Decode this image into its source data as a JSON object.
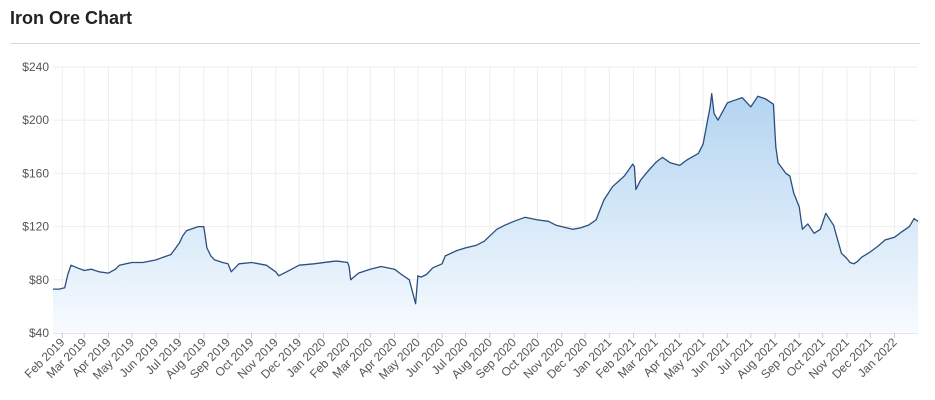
{
  "header": {
    "title": "Iron Ore Chart"
  },
  "chart_data": {
    "type": "area",
    "title": "Iron Ore Chart",
    "xlabel": "",
    "ylabel": "",
    "ylim": [
      40,
      240
    ],
    "y_ticks": [
      40,
      80,
      120,
      160,
      200,
      240
    ],
    "y_tick_labels": [
      "$40",
      "$80",
      "$120",
      "$160",
      "$200",
      "$240"
    ],
    "x_range": [
      "2019-01-20",
      "2022-01-31"
    ],
    "x_tick_dates": [
      "2019-02-01",
      "2019-03-01",
      "2019-04-01",
      "2019-05-01",
      "2019-06-01",
      "2019-07-01",
      "2019-08-01",
      "2019-09-01",
      "2019-10-01",
      "2019-11-01",
      "2019-12-01",
      "2020-01-01",
      "2020-02-01",
      "2020-03-01",
      "2020-04-01",
      "2020-05-01",
      "2020-06-01",
      "2020-07-01",
      "2020-08-01",
      "2020-09-01",
      "2020-10-01",
      "2020-11-01",
      "2020-12-01",
      "2021-01-01",
      "2021-02-01",
      "2021-03-01",
      "2021-04-01",
      "2021-05-01",
      "2021-06-01",
      "2021-07-01",
      "2021-08-01",
      "2021-09-01",
      "2021-10-01",
      "2021-11-01",
      "2021-12-01",
      "2022-01-01"
    ],
    "x_tick_labels": [
      "Feb 2019",
      "Mar 2019",
      "Apr 2019",
      "May 2019",
      "Jun 2019",
      "Jul 2019",
      "Aug 2019",
      "Sep 2019",
      "Oct 2019",
      "Nov 2019",
      "Dec 2019",
      "Jan 2020",
      "Feb 2020",
      "Mar 2020",
      "Apr 2020",
      "May 2020",
      "Jun 2020",
      "Jul 2020",
      "Aug 2020",
      "Sep 2020",
      "Oct 2020",
      "Nov 2020",
      "Dec 2020",
      "Jan 2021",
      "Feb 2021",
      "Mar 2021",
      "Apr 2021",
      "May 2021",
      "Jun 2021",
      "Jul 2021",
      "Aug 2021",
      "Sep 2021",
      "Oct 2021",
      "Nov 2021",
      "Dec 2021",
      "Jan 2022"
    ],
    "grid": true,
    "colors": {
      "line": "#2b4f7e",
      "fill_top": "#b3d4f0",
      "fill_bottom": "#f7fbff",
      "grid": "#eeeeee"
    },
    "series": [
      {
        "x": [
          "2019-01-20",
          "2019-01-28",
          "2019-02-04",
          "2019-02-08",
          "2019-02-12",
          "2019-02-20",
          "2019-03-01",
          "2019-03-10",
          "2019-03-20",
          "2019-04-01",
          "2019-04-10",
          "2019-04-15",
          "2019-05-01",
          "2019-05-15",
          "2019-06-01",
          "2019-06-10",
          "2019-06-20",
          "2019-07-01",
          "2019-07-05",
          "2019-07-10",
          "2019-07-25",
          "2019-08-01",
          "2019-08-05",
          "2019-08-10",
          "2019-08-15",
          "2019-08-25",
          "2019-09-01",
          "2019-09-05",
          "2019-09-15",
          "2019-10-01",
          "2019-10-20",
          "2019-11-01",
          "2019-11-05",
          "2019-11-15",
          "2019-12-01",
          "2019-12-20",
          "2020-01-15",
          "2020-01-20",
          "2020-02-01",
          "2020-02-03",
          "2020-02-05",
          "2020-02-15",
          "2020-03-01",
          "2020-03-15",
          "2020-04-01",
          "2020-04-10",
          "2020-04-20",
          "2020-04-28",
          "2020-05-01",
          "2020-05-05",
          "2020-05-12",
          "2020-05-20",
          "2020-06-01",
          "2020-06-05",
          "2020-06-20",
          "2020-07-01",
          "2020-07-15",
          "2020-07-25",
          "2020-08-10",
          "2020-08-20",
          "2020-09-01",
          "2020-09-15",
          "2020-10-01",
          "2020-10-15",
          "2020-10-25",
          "2020-11-01",
          "2020-11-15",
          "2020-11-25",
          "2020-12-05",
          "2020-12-15",
          "2020-12-25",
          "2021-01-05",
          "2021-01-20",
          "2021-01-31",
          "2021-02-02",
          "2021-02-04",
          "2021-02-10",
          "2021-02-20",
          "2021-03-01",
          "2021-03-05",
          "2021-03-10",
          "2021-03-20",
          "2021-04-01",
          "2021-04-10",
          "2021-04-25",
          "2021-05-01",
          "2021-05-10",
          "2021-05-12",
          "2021-05-15",
          "2021-05-20",
          "2021-06-01",
          "2021-06-10",
          "2021-06-20",
          "2021-07-01",
          "2021-07-10",
          "2021-07-20",
          "2021-07-30",
          "2021-08-02",
          "2021-08-05",
          "2021-08-15",
          "2021-08-20",
          "2021-08-25",
          "2021-09-01",
          "2021-09-05",
          "2021-09-12",
          "2021-09-20",
          "2021-09-28",
          "2021-10-05",
          "2021-10-15",
          "2021-10-25",
          "2021-11-01",
          "2021-11-05",
          "2021-11-10",
          "2021-11-15",
          "2021-11-20",
          "2021-12-01",
          "2021-12-10",
          "2021-12-20",
          "2022-01-01",
          "2022-01-10",
          "2022-01-20",
          "2022-01-26",
          "2022-01-31"
        ],
        "values": [
          73,
          73,
          74,
          84,
          91,
          89,
          87,
          88,
          86,
          85,
          88,
          91,
          93,
          93,
          95,
          97,
          99,
          108,
          113,
          117,
          120,
          120,
          104,
          98,
          95,
          93,
          92,
          86,
          92,
          93,
          91,
          86,
          83,
          86,
          91,
          92,
          94,
          94,
          93,
          90,
          80,
          85,
          88,
          90,
          88,
          84,
          80,
          62,
          83,
          82,
          84,
          89,
          92,
          98,
          102,
          104,
          106,
          109,
          118,
          121,
          124,
          127,
          125,
          124,
          121,
          120,
          118,
          119,
          121,
          125,
          140,
          150,
          158,
          167,
          165,
          148,
          155,
          162,
          168,
          170,
          172,
          168,
          166,
          170,
          175,
          182,
          210,
          220,
          205,
          200,
          213,
          215,
          217,
          210,
          218,
          216,
          212,
          180,
          168,
          160,
          158,
          145,
          135,
          118,
          122,
          115,
          118,
          130,
          121,
          100,
          96,
          93,
          92,
          94,
          97,
          101,
          105,
          110,
          112,
          116,
          120,
          126,
          124
        ]
      }
    ]
  }
}
